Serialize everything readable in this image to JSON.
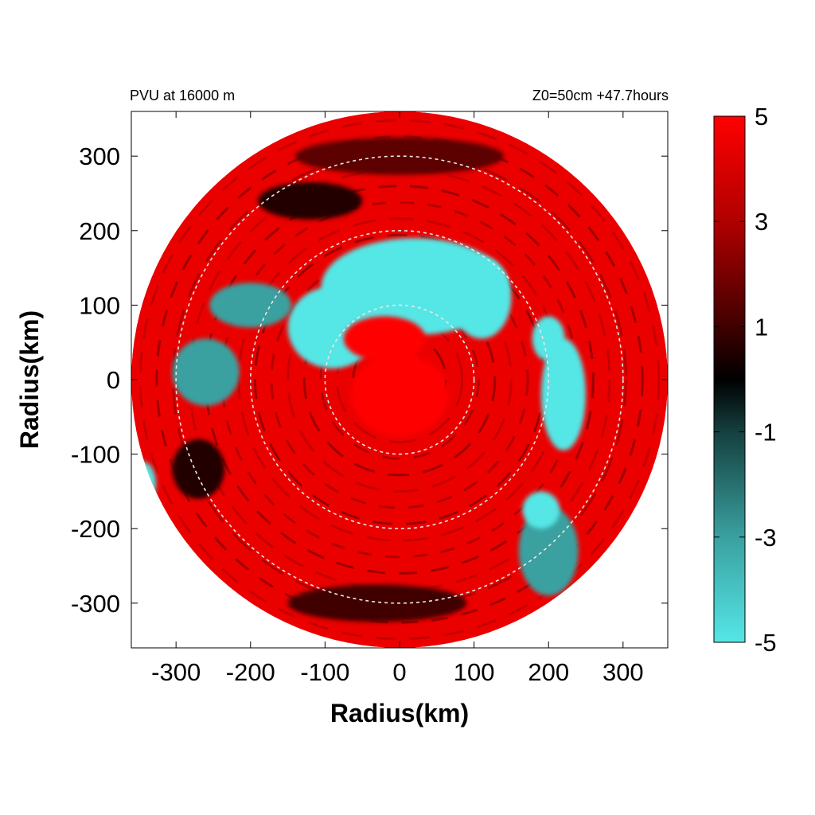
{
  "chart_data": {
    "type": "heatmap",
    "projection": "polar field on x/y plane",
    "title_left": "PVU at 16000 m",
    "title_right": "Z0=50cm  +47.7hours",
    "xlabel": "Radius(km)",
    "ylabel": "Radius(km)",
    "xlim": [
      -360,
      360
    ],
    "ylim": [
      -360,
      360
    ],
    "xticks": [
      -300,
      -200,
      -100,
      0,
      100,
      200,
      300
    ],
    "yticks": [
      -300,
      -200,
      -100,
      0,
      100,
      200,
      300
    ],
    "field_max_radius_km": 360,
    "reference_circles_km": [
      100,
      200,
      300
    ],
    "colorbar": {
      "range": [
        -5,
        5
      ],
      "tick_values": [
        5,
        3,
        1,
        -1,
        -3,
        -5
      ],
      "tick_labels": [
        "5",
        "3",
        "1",
        "-1",
        "-3",
        "-5"
      ],
      "colors": [
        {
          "value": -5,
          "color": "#55e6e6"
        },
        {
          "value": -3,
          "color": "#3aa0a0"
        },
        {
          "value": -1,
          "color": "#15403f"
        },
        {
          "value": 0,
          "color": "#000000"
        },
        {
          "value": 1,
          "color": "#400000"
        },
        {
          "value": 3,
          "color": "#b00000"
        },
        {
          "value": 5,
          "color": "#ff0000"
        }
      ]
    },
    "field_regions": [
      {
        "kind": "background",
        "value": 4.5
      },
      {
        "kind": "blob",
        "x": 20,
        "y": 125,
        "rx": 125,
        "ry": 65,
        "value": -5
      },
      {
        "kind": "blob",
        "x": -90,
        "y": 70,
        "rx": 60,
        "ry": 55,
        "value": -5
      },
      {
        "kind": "blob",
        "x": 110,
        "y": 110,
        "rx": 40,
        "ry": 55,
        "value": -5
      },
      {
        "kind": "blob",
        "x": 220,
        "y": -20,
        "rx": 30,
        "ry": 75,
        "value": -5
      },
      {
        "kind": "blob",
        "x": 200,
        "y": 55,
        "rx": 22,
        "ry": 30,
        "value": -5
      },
      {
        "kind": "blob",
        "x": -200,
        "y": 100,
        "rx": 55,
        "ry": 30,
        "value": -3
      },
      {
        "kind": "blob",
        "x": -260,
        "y": 10,
        "rx": 45,
        "ry": 45,
        "value": -3
      },
      {
        "kind": "blob",
        "x": -345,
        "y": -140,
        "rx": 18,
        "ry": 30,
        "value": -5
      },
      {
        "kind": "blob",
        "x": 200,
        "y": -230,
        "rx": 40,
        "ry": 60,
        "value": -3
      },
      {
        "kind": "blob",
        "x": 190,
        "y": -175,
        "rx": 25,
        "ry": 25,
        "value": -5
      },
      {
        "kind": "blob",
        "x": -120,
        "y": 240,
        "rx": 70,
        "ry": 25,
        "value": 0.5
      },
      {
        "kind": "blob",
        "x": 0,
        "y": 300,
        "rx": 140,
        "ry": 25,
        "value": 1.5
      },
      {
        "kind": "blob",
        "x": -30,
        "y": -300,
        "rx": 120,
        "ry": 25,
        "value": 1
      },
      {
        "kind": "blob",
        "x": -270,
        "y": -120,
        "rx": 35,
        "ry": 40,
        "value": 0.5
      },
      {
        "kind": "blob",
        "x": 0,
        "y": -20,
        "rx": 65,
        "ry": 55,
        "value": 5
      },
      {
        "kind": "blob",
        "x": -20,
        "y": 55,
        "rx": 55,
        "ry": 30,
        "value": 5
      }
    ]
  }
}
